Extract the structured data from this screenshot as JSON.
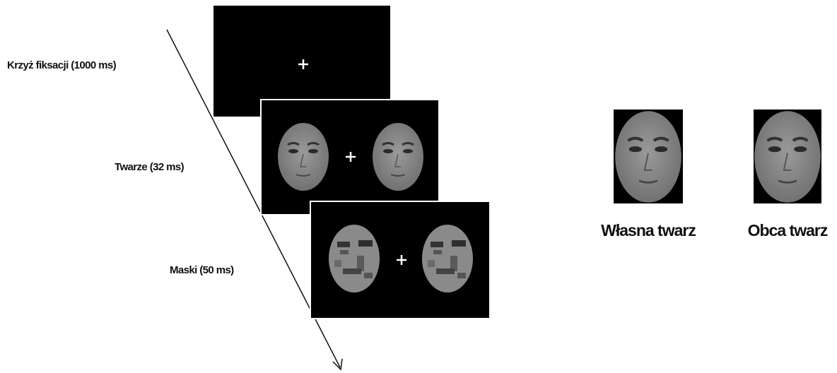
{
  "stages": [
    {
      "label": "Krzyż fiksacji (1000 ms)"
    },
    {
      "label": "Twarze (32 ms)"
    },
    {
      "label": "Maski (50 ms)"
    }
  ],
  "faces": [
    {
      "label": "Własna twarz"
    },
    {
      "label": "Obca twarz"
    }
  ]
}
